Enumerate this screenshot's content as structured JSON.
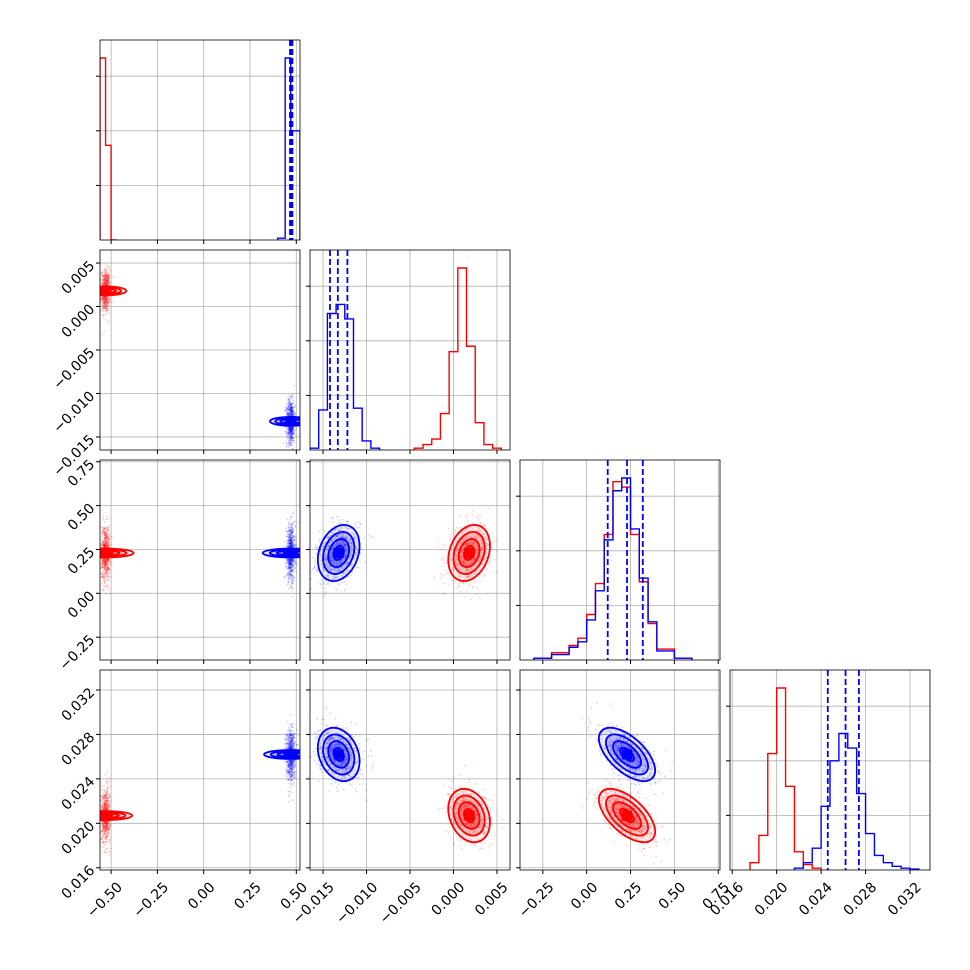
{
  "colors": {
    "model_a": "#ff0000",
    "model_b": "#0000ff",
    "grid": "#b0b0b0"
  },
  "chart_data": {
    "type": "corner",
    "grid": true,
    "legend": "none",
    "parameters": [
      {
        "range": [
          -0.56,
          0.52
        ],
        "ticks": [
          -0.5,
          -0.25,
          0.0,
          0.25,
          0.5
        ],
        "tick_labels": [
          "−0.50",
          "−0.25",
          "0.00",
          "0.25",
          "0.50"
        ]
      },
      {
        "range": [
          -0.0165,
          0.0065
        ],
        "ticks": [
          -0.015,
          -0.01,
          -0.005,
          0.0,
          0.005
        ],
        "tick_labels": [
          "−0.015",
          "−0.010",
          "−0.005",
          "0.000",
          "0.005"
        ]
      },
      {
        "range": [
          -0.38,
          0.76
        ],
        "ticks": [
          -0.25,
          0.0,
          0.25,
          0.5,
          0.75
        ],
        "tick_labels": [
          "−0.25",
          "0.00",
          "0.25",
          "0.50",
          "0.75"
        ]
      },
      {
        "range": [
          0.0158,
          0.0338
        ],
        "ticks": [
          0.016,
          0.02,
          0.024,
          0.028,
          0.032
        ],
        "tick_labels": [
          "0.016",
          "0.020",
          "0.024",
          "0.028",
          "0.032"
        ]
      }
    ],
    "series": [
      {
        "color": "#ff0000",
        "means": [
          -0.53,
          0.0018,
          0.23,
          0.0207
        ],
        "sigmas": [
          0.012,
          0.0012,
          0.08,
          0.0012
        ],
        "quantiles": [],
        "hist": [
          {
            "edges": [
              -0.56,
              -0.53,
              -0.5,
              -0.47
            ],
            "counts": [
              1.0,
              0.52,
              0.0
            ]
          },
          {
            "edges": [
              -0.0045,
              -0.0035,
              -0.0025,
              -0.0015,
              -0.0005,
              0.0005,
              0.0015,
              0.0025,
              0.0035,
              0.0045,
              0.0055
            ],
            "counts": [
              0.01,
              0.03,
              0.06,
              0.2,
              0.54,
              1.0,
              0.57,
              0.15,
              0.03,
              0.01
            ]
          },
          {
            "edges": [
              -0.3,
              -0.2,
              -0.1,
              -0.05,
              0.0,
              0.05,
              0.1,
              0.15,
              0.2,
              0.25,
              0.3,
              0.35,
              0.4,
              0.5,
              0.6
            ],
            "counts": [
              0.01,
              0.04,
              0.08,
              0.12,
              0.25,
              0.42,
              0.69,
              0.98,
              0.95,
              0.69,
              0.43,
              0.2,
              0.06,
              0.01
            ]
          },
          {
            "edges": [
              0.0176,
              0.0184,
              0.0192,
              0.02,
              0.0208,
              0.0216,
              0.0224,
              0.0232,
              0.024
            ],
            "counts": [
              0.04,
              0.19,
              0.64,
              1.0,
              0.46,
              0.1,
              0.03,
              0.01
            ]
          }
        ]
      },
      {
        "color": "#0000ff",
        "means": [
          0.47,
          -0.0132,
          0.23,
          0.0262
        ],
        "sigmas": [
          0.012,
          0.0012,
          0.08,
          0.0012
        ],
        "quantiles": [
          [
            0.466,
            0.472,
            0.479
          ],
          [
            -0.0142,
            -0.0133,
            -0.0122
          ],
          [
            0.12,
            0.23,
            0.32
          ],
          [
            0.0246,
            0.0262,
            0.0274
          ]
        ],
        "hist": [
          {
            "edges": [
              0.4,
              0.44,
              0.47,
              0.5,
              0.52
            ],
            "counts": [
              0.01,
              1.0,
              0.6,
              0.6
            ]
          },
          {
            "edges": [
              -0.0165,
              -0.0155,
              -0.0145,
              -0.0135,
              -0.0125,
              -0.0115,
              -0.0105,
              -0.0095,
              -0.0085
            ],
            "counts": [
              0.01,
              0.22,
              0.75,
              0.8,
              0.72,
              0.23,
              0.05,
              0.01
            ]
          },
          {
            "edges": [
              -0.3,
              -0.2,
              -0.1,
              -0.05,
              0.0,
              0.05,
              0.1,
              0.15,
              0.2,
              0.25,
              0.3,
              0.35,
              0.4,
              0.5,
              0.6
            ],
            "counts": [
              0.01,
              0.03,
              0.07,
              0.1,
              0.22,
              0.38,
              0.66,
              0.93,
              1.0,
              0.72,
              0.45,
              0.21,
              0.05,
              0.01
            ]
          },
          {
            "edges": [
              0.0216,
              0.0224,
              0.0232,
              0.024,
              0.0248,
              0.0256,
              0.0264,
              0.0272,
              0.028,
              0.0288,
              0.0296,
              0.0304,
              0.0312,
              0.032,
              0.0328
            ],
            "counts": [
              0.01,
              0.04,
              0.12,
              0.35,
              0.6,
              0.75,
              0.67,
              0.42,
              0.2,
              0.08,
              0.04,
              0.02,
              0.01,
              0.005
            ]
          }
        ]
      }
    ]
  }
}
